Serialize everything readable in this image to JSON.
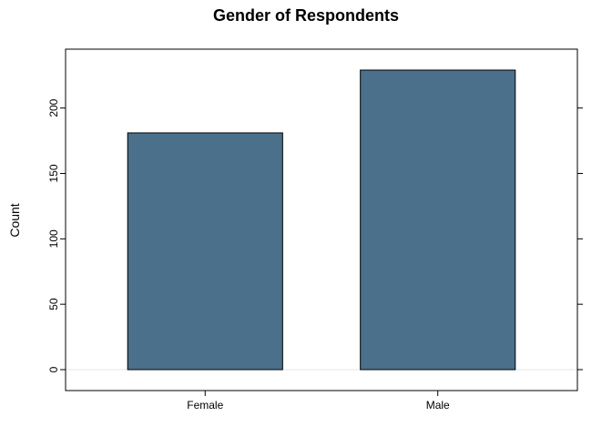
{
  "chart_data": {
    "type": "bar",
    "title": "Gender of Respondents",
    "xlabel": "",
    "ylabel": "Count",
    "categories": [
      "Female",
      "Male"
    ],
    "values": [
      181,
      229
    ],
    "ylim": [
      -16,
      245
    ],
    "yticks": [
      0,
      50,
      100,
      150,
      200
    ],
    "ytick_labels": [
      "0",
      "50",
      "100",
      "150",
      "200"
    ],
    "bar_color": "#4a708b",
    "grid": false,
    "legend": "none"
  }
}
